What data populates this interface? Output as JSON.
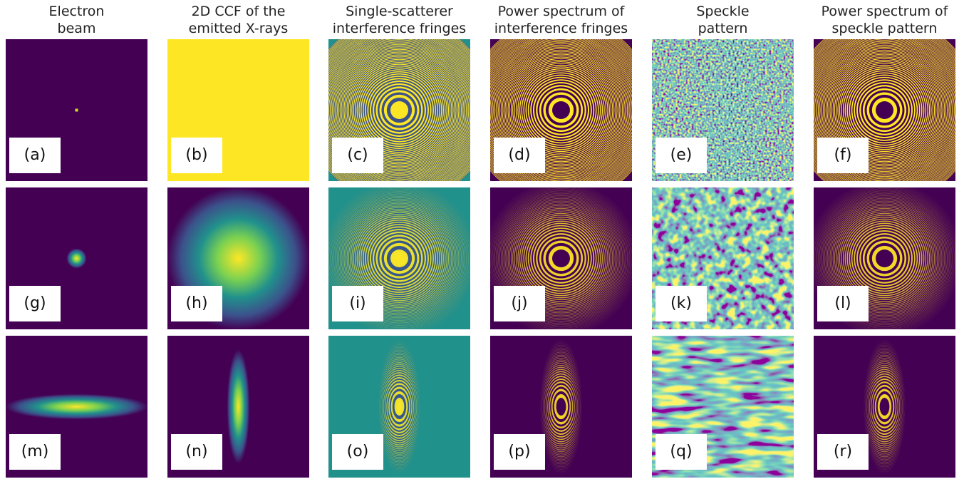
{
  "columns": [
    {
      "title": [
        "Electron",
        "beam"
      ]
    },
    {
      "title": [
        "2D CCF of the",
        "emitted X-rays"
      ]
    },
    {
      "title": [
        "Single-scatterer",
        "interference fringes"
      ]
    },
    {
      "title": [
        "Power spectrum of",
        "interference fringes"
      ]
    },
    {
      "title": [
        "Speckle",
        "pattern"
      ]
    },
    {
      "title": [
        "Power spectrum of",
        "speckle pattern"
      ]
    }
  ],
  "rows": [
    [
      "(a)",
      "(b)",
      "(c)",
      "(d)",
      "(e)",
      "(f)"
    ],
    [
      "(g)",
      "(h)",
      "(i)",
      "(j)",
      "(k)",
      "(l)"
    ],
    [
      "(m)",
      "(n)",
      "(o)",
      "(p)",
      "(q)",
      "(r)"
    ]
  ]
}
